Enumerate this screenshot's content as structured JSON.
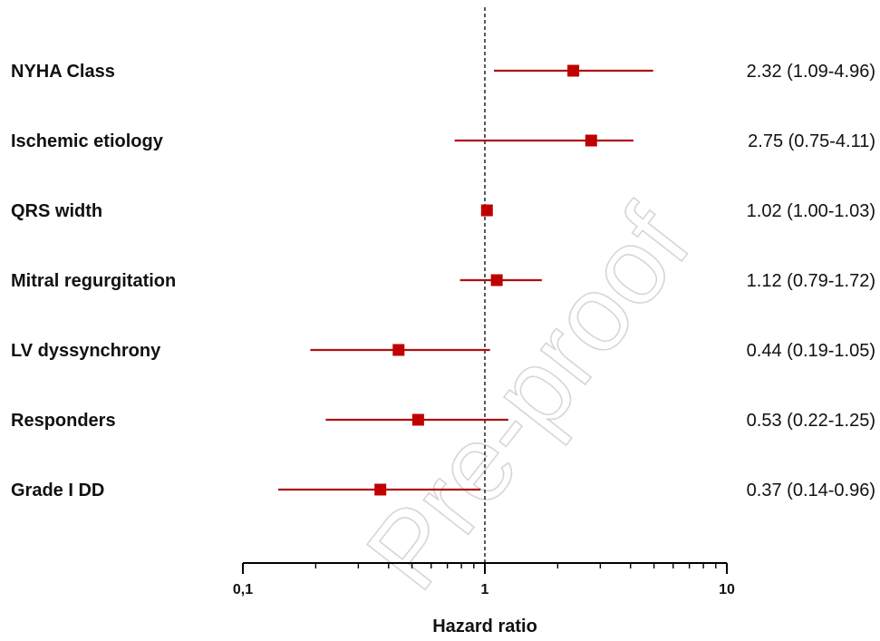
{
  "chart_data": {
    "type": "forest",
    "xlabel": "Hazard ratio",
    "xscale": "log",
    "xlim": [
      0.1,
      10
    ],
    "reference_line": 1,
    "xticks": [
      {
        "value": 0.1,
        "label": "0,1"
      },
      {
        "value": 1,
        "label": "1"
      },
      {
        "value": 10,
        "label": "10"
      }
    ],
    "rows": [
      {
        "label": "NYHA Class",
        "hr": 2.32,
        "lower": 1.09,
        "upper": 4.96,
        "ci_text": "2.32 (1.09-4.96)"
      },
      {
        "label": "Ischemic etiology",
        "hr": 2.75,
        "lower": 0.75,
        "upper": 4.11,
        "ci_text": "2.75 (0.75-4.11)"
      },
      {
        "label": "QRS width",
        "hr": 1.02,
        "lower": 1.0,
        "upper": 1.03,
        "ci_text": "1.02 (1.00-1.03)"
      },
      {
        "label": "Mitral regurgitation",
        "hr": 1.12,
        "lower": 0.79,
        "upper": 1.72,
        "ci_text": "1.12 (0.79-1.72)"
      },
      {
        "label": "LV dyssynchrony",
        "hr": 0.44,
        "lower": 0.19,
        "upper": 1.05,
        "ci_text": "0.44 (0.19-1.05)"
      },
      {
        "label": "Responders",
        "hr": 0.53,
        "lower": 0.22,
        "upper": 1.25,
        "ci_text": "0.53 (0.22-1.25)"
      },
      {
        "label": "Grade I DD",
        "hr": 0.37,
        "lower": 0.14,
        "upper": 0.96,
        "ci_text": "0.37 (0.14-0.96)"
      }
    ],
    "colors": {
      "marker": "#c00000",
      "line": "#b01010",
      "axis": "#000000"
    }
  },
  "watermark": "Pre-proof"
}
